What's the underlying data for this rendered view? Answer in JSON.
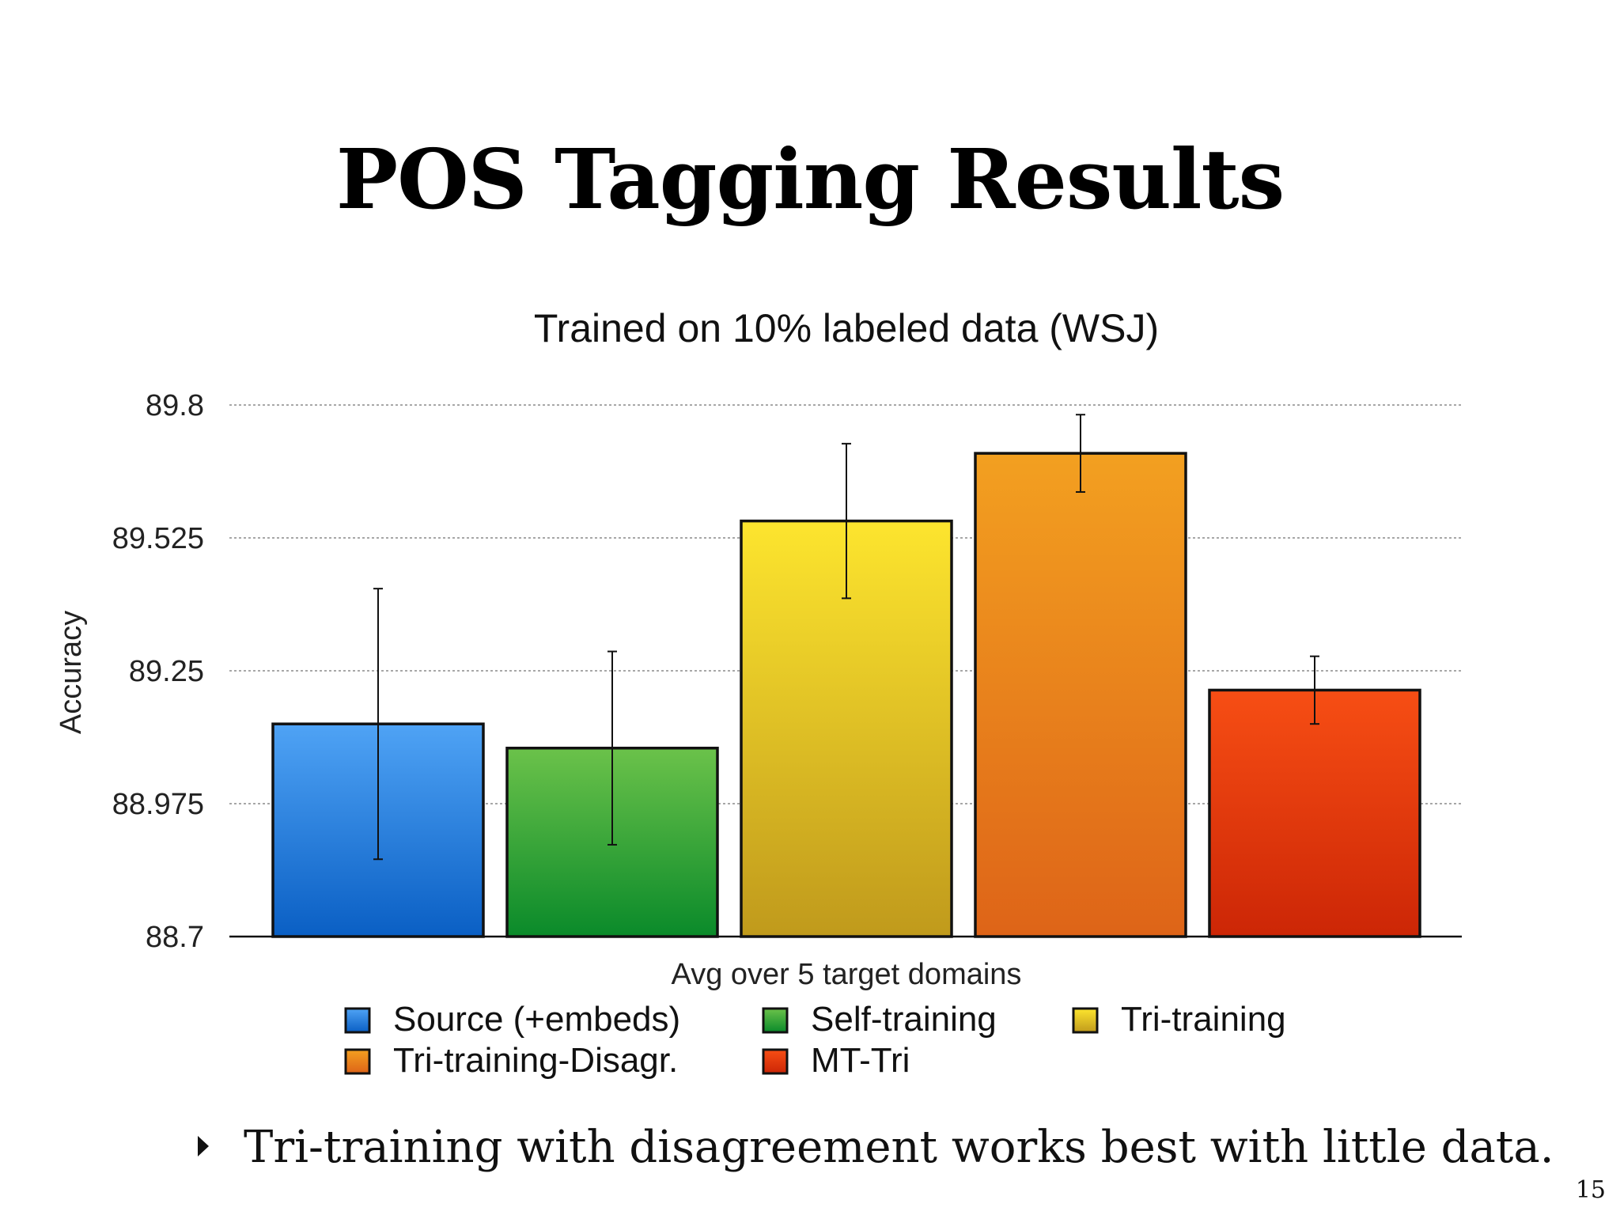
{
  "slide": {
    "title": "POS Tagging Results",
    "bullet": "Tri-training with disagreement works best with little data.",
    "page_number": "15"
  },
  "chart_data": {
    "type": "bar",
    "title": "Trained on 10% labeled data (WSJ)",
    "xlabel": "Avg over 5 target domains",
    "ylabel": "Accuracy",
    "ylim": [
      88.7,
      89.8
    ],
    "yticks": [
      88.7,
      88.975,
      89.25,
      89.525,
      89.8
    ],
    "ytick_labels": [
      "88.7",
      "88.975",
      "89.25",
      "89.525",
      "89.8"
    ],
    "grid": true,
    "legend_position": "bottom",
    "series": [
      {
        "name": "Source (+embeds)",
        "value": 89.14,
        "error": 0.28,
        "color_top": "#4fa3f5",
        "color_bottom": "#0a5fc4"
      },
      {
        "name": "Self-training",
        "value": 89.09,
        "error": 0.2,
        "color_top": "#6bc24a",
        "color_bottom": "#0a8a2a"
      },
      {
        "name": "Tri-training",
        "value": 89.56,
        "error": 0.16,
        "color_top": "#fde52e",
        "color_bottom": "#c09a1c"
      },
      {
        "name": "Tri-training-Disagr.",
        "value": 89.7,
        "error": 0.08,
        "color_top": "#f3a020",
        "color_bottom": "#de6418"
      },
      {
        "name": "MT-Tri",
        "value": 89.21,
        "error": 0.07,
        "color_top": "#f74e14",
        "color_bottom": "#cc2606"
      }
    ]
  }
}
